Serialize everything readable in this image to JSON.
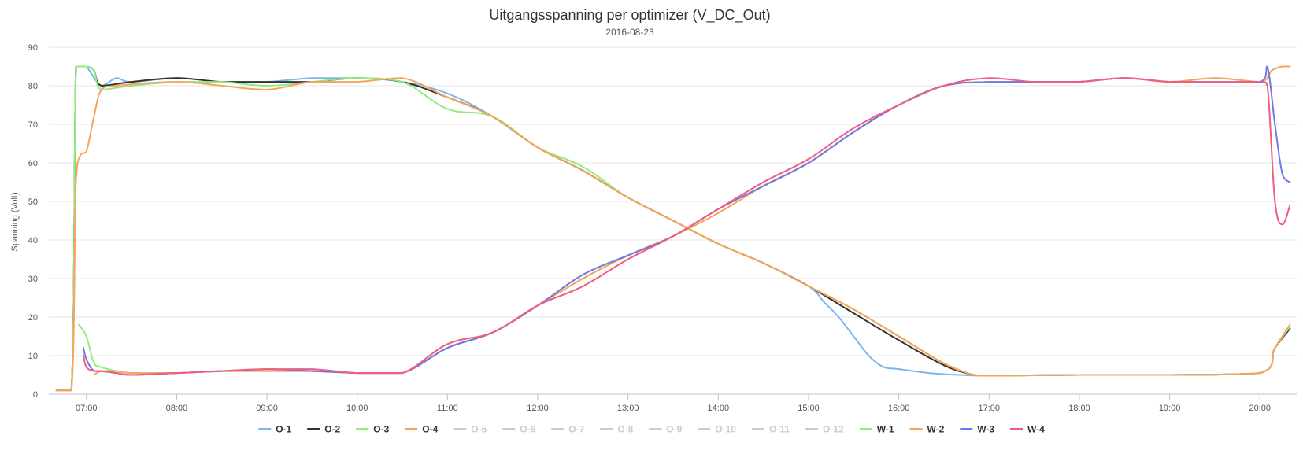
{
  "chart_data": {
    "type": "line",
    "title": "Uitgangsspanning per optimizer (V_DC_Out)",
    "subtitle": "2016-08-23",
    "ylabel": "Spanning (Volt)",
    "xlabel": "",
    "ylim": [
      0,
      90
    ],
    "yticks": [
      0,
      10,
      20,
      30,
      40,
      50,
      60,
      70,
      80,
      90
    ],
    "xlim": [
      "06:35",
      "20:25"
    ],
    "xticks": [
      "07:00",
      "08:00",
      "09:00",
      "10:00",
      "11:00",
      "12:00",
      "13:00",
      "14:00",
      "15:00",
      "16:00",
      "17:00",
      "18:00",
      "19:00",
      "20:00"
    ],
    "grid": true,
    "legend_position": "bottom",
    "series": [
      {
        "name": "O-1",
        "color": "#7cb5ec",
        "visible": true,
        "x": [
          "06:40",
          "06:50",
          "06:53",
          "06:57",
          "07:00",
          "07:10",
          "07:20",
          "07:30",
          "08:00",
          "08:30",
          "09:00",
          "09:30",
          "10:00",
          "10:30",
          "11:00",
          "11:30",
          "12:00",
          "12:30",
          "13:00",
          "13:30",
          "14:00",
          "14:30",
          "15:00",
          "15:10",
          "15:20",
          "15:30",
          "15:40",
          "15:50",
          "16:00",
          "16:20",
          "16:40",
          "17:00",
          "18:00",
          "19:00",
          "20:00",
          "20:10",
          "20:20"
        ],
        "values": [
          1,
          1,
          85,
          85,
          85,
          80,
          82,
          81,
          82,
          81,
          81,
          82,
          82,
          81,
          78,
          72,
          64,
          58,
          51,
          45,
          39,
          34,
          28,
          24,
          20,
          15,
          10,
          7,
          6.5,
          5.5,
          5,
          4.8,
          5,
          5,
          5.5,
          12,
          17
        ]
      },
      {
        "name": "O-2",
        "color": "#333333",
        "visible": true,
        "x": [
          "06:40",
          "06:50",
          "06:53",
          "06:57",
          "07:00",
          "07:05",
          "07:10",
          "07:30",
          "08:00",
          "08:30",
          "09:00",
          "09:30",
          "10:00",
          "10:30",
          "11:00",
          "11:30",
          "12:00",
          "12:30",
          "13:00",
          "13:30",
          "14:00",
          "14:30",
          "15:00",
          "15:30",
          "16:00",
          "16:30",
          "16:50",
          "17:00",
          "18:00",
          "19:00",
          "20:00",
          "20:10",
          "20:20"
        ],
        "values": [
          1,
          1,
          85,
          85,
          85,
          84,
          80,
          81,
          82,
          81,
          81,
          81,
          82,
          81,
          77,
          72,
          64,
          58,
          51,
          45,
          39,
          34,
          28,
          21,
          14,
          7.5,
          5,
          4.8,
          5,
          5,
          5.5,
          12,
          17
        ]
      },
      {
        "name": "O-3",
        "color": "#90ed7d",
        "visible": true,
        "x": [
          "06:40",
          "06:50",
          "06:53",
          "06:57",
          "07:00",
          "07:05",
          "07:10",
          "07:30",
          "08:00",
          "08:30",
          "09:00",
          "09:30",
          "10:00",
          "10:30",
          "11:00",
          "11:30",
          "12:00",
          "12:30",
          "13:00",
          "13:30",
          "14:00",
          "14:30",
          "15:00",
          "15:30",
          "16:00",
          "16:30",
          "16:50",
          "17:00",
          "18:00",
          "19:00",
          "20:00",
          "20:10",
          "20:20"
        ],
        "values": [
          1,
          1,
          85,
          85,
          85,
          84,
          79,
          80,
          81,
          81,
          80,
          81,
          82,
          81,
          74,
          72,
          64,
          59,
          51,
          45,
          39,
          34,
          28,
          22,
          15,
          8,
          5,
          4.8,
          5,
          5,
          5.5,
          12,
          17.5
        ]
      },
      {
        "name": "O-4",
        "color": "#f7a35c",
        "visible": true,
        "x": [
          "06:40",
          "06:50",
          "06:53",
          "06:56",
          "07:00",
          "07:05",
          "07:10",
          "07:20",
          "08:00",
          "08:30",
          "09:00",
          "09:30",
          "10:00",
          "10:30",
          "11:00",
          "11:30",
          "12:00",
          "12:30",
          "13:00",
          "13:30",
          "14:00",
          "14:30",
          "15:00",
          "15:30",
          "16:00",
          "16:30",
          "16:50",
          "17:00",
          "18:00",
          "19:00",
          "20:00",
          "20:10",
          "20:20"
        ],
        "values": [
          1,
          1,
          55,
          62,
          63,
          72,
          79,
          80,
          81,
          80,
          79,
          81,
          81,
          82,
          77,
          72,
          64,
          58,
          51,
          45,
          39,
          34,
          28,
          22,
          15,
          8,
          5,
          4.8,
          5,
          5,
          5.5,
          12,
          18
        ]
      },
      {
        "name": "O-5",
        "color": "#cccccc",
        "visible": false,
        "x": [],
        "values": []
      },
      {
        "name": "O-6",
        "color": "#cccccc",
        "visible": false,
        "x": [],
        "values": []
      },
      {
        "name": "O-7",
        "color": "#cccccc",
        "visible": false,
        "x": [],
        "values": []
      },
      {
        "name": "O-8",
        "color": "#cccccc",
        "visible": false,
        "x": [],
        "values": []
      },
      {
        "name": "O-9",
        "color": "#cccccc",
        "visible": false,
        "x": [],
        "values": []
      },
      {
        "name": "O-10",
        "color": "#cccccc",
        "visible": false,
        "x": [],
        "values": []
      },
      {
        "name": "O-11",
        "color": "#cccccc",
        "visible": false,
        "x": [],
        "values": []
      },
      {
        "name": "O-12",
        "color": "#cccccc",
        "visible": false,
        "x": [],
        "values": []
      },
      {
        "name": "W-1",
        "color": "#90ed7d",
        "visible": true,
        "x": [
          "06:55",
          "07:00",
          "07:05",
          "07:10",
          "07:20",
          "07:30",
          "08:00",
          "08:30",
          "09:00",
          "09:30",
          "10:00",
          "10:30",
          "11:00",
          "11:30",
          "12:00",
          "12:30",
          "13:00",
          "13:30",
          "14:00",
          "14:30",
          "15:00",
          "15:30",
          "16:00",
          "16:30",
          "17:00",
          "17:30",
          "18:00",
          "18:30",
          "19:00",
          "19:30",
          "20:00",
          "20:08",
          "20:15",
          "20:20"
        ],
        "values": [
          18,
          15,
          8,
          7,
          6,
          5.5,
          5.5,
          6,
          6,
          6,
          5.5,
          5.5,
          12,
          16,
          23,
          30,
          36,
          41,
          48,
          54,
          60,
          68,
          75,
          80,
          81,
          81,
          81,
          82,
          81,
          82,
          81,
          84,
          85,
          85
        ]
      },
      {
        "name": "W-2",
        "color": "#f7a35c",
        "visible": true,
        "x": [
          "07:05",
          "07:10",
          "07:20",
          "07:30",
          "08:00",
          "08:30",
          "09:00",
          "09:30",
          "10:00",
          "10:30",
          "11:00",
          "11:30",
          "12:00",
          "12:30",
          "13:00",
          "13:30",
          "14:00",
          "14:30",
          "15:00",
          "15:30",
          "16:00",
          "16:30",
          "17:00",
          "17:30",
          "18:00",
          "18:30",
          "19:00",
          "19:30",
          "20:00",
          "20:08",
          "20:15",
          "20:20"
        ],
        "values": [
          5,
          6,
          6,
          5.5,
          5.5,
          6,
          6,
          6,
          5.5,
          5.5,
          12,
          16,
          23,
          30,
          36,
          41,
          47,
          54,
          60,
          68,
          75,
          80,
          81,
          81,
          81,
          82,
          81,
          82,
          81,
          84,
          85,
          85
        ]
      },
      {
        "name": "W-3",
        "color": "#6f78e6",
        "visible": true,
        "x": [
          "06:58",
          "07:00",
          "07:05",
          "07:10",
          "07:20",
          "07:30",
          "08:00",
          "08:30",
          "09:00",
          "09:30",
          "10:00",
          "10:30",
          "11:00",
          "11:30",
          "12:00",
          "12:30",
          "13:00",
          "13:30",
          "14:00",
          "14:30",
          "15:00",
          "15:30",
          "16:00",
          "16:30",
          "17:00",
          "17:30",
          "18:00",
          "18:30",
          "19:00",
          "19:30",
          "20:00",
          "20:05",
          "20:10",
          "20:15",
          "20:20"
        ],
        "values": [
          12,
          9,
          6,
          6,
          5.5,
          5,
          5.5,
          6,
          6.5,
          6,
          5.5,
          5.5,
          12,
          16,
          23,
          31,
          36,
          41,
          48,
          54,
          60,
          68,
          75,
          80,
          81,
          81,
          81,
          82,
          81,
          81,
          81,
          85,
          70,
          57,
          55
        ]
      },
      {
        "name": "W-4",
        "color": "#f15c80",
        "visible": true,
        "x": [
          "06:58",
          "07:00",
          "07:05",
          "07:10",
          "07:20",
          "07:30",
          "08:00",
          "08:30",
          "09:00",
          "09:30",
          "10:00",
          "10:30",
          "11:00",
          "11:30",
          "12:00",
          "12:30",
          "13:00",
          "13:30",
          "14:00",
          "14:30",
          "15:00",
          "15:30",
          "16:00",
          "16:30",
          "17:00",
          "17:30",
          "18:00",
          "18:30",
          "19:00",
          "19:30",
          "20:00",
          "20:05",
          "20:10",
          "20:15",
          "20:20"
        ],
        "values": [
          10,
          7,
          6,
          6,
          5.5,
          5,
          5.5,
          6,
          6.5,
          6.5,
          5.5,
          5.5,
          13,
          16,
          23,
          28,
          35,
          41,
          48,
          55,
          61,
          69,
          75,
          80,
          82,
          81,
          81,
          82,
          81,
          81,
          81,
          80,
          50,
          44,
          49
        ]
      }
    ]
  }
}
